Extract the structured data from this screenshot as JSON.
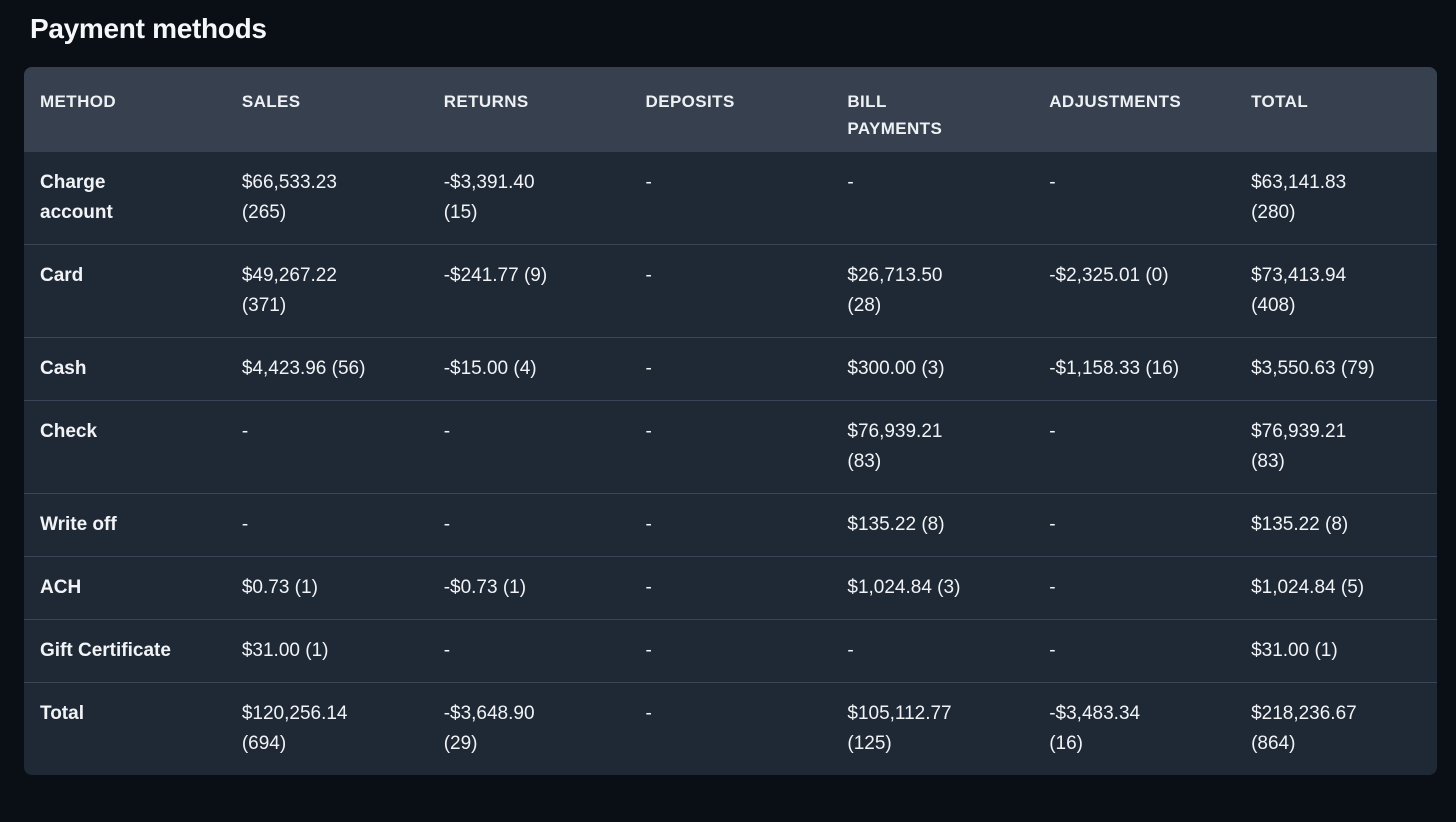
{
  "page": {
    "title": "Payment methods"
  },
  "colors": {
    "page_background": "#0a0e15",
    "table_header_background": "#36404f",
    "table_row_background": "#1f2935",
    "row_divider": "#3a4557",
    "text": "#f1f3f6"
  },
  "table": {
    "column_keys": [
      "method",
      "sales",
      "returns",
      "deposits",
      "bill_payments",
      "adjustments",
      "total"
    ],
    "columns": [
      "METHOD",
      "SALES",
      "RETURNS",
      "DEPOSITS",
      "BILL\nPAYMENTS",
      "ADJUSTMENTS",
      "TOTAL"
    ],
    "rows": [
      {
        "method": "Charge\naccount",
        "sales": "$66,533.23\n(265)",
        "returns": "-$3,391.40\n(15)",
        "deposits": "-",
        "bill_payments": "-",
        "adjustments": "-",
        "total": "$63,141.83\n(280)"
      },
      {
        "method": "Card",
        "sales": "$49,267.22\n(371)",
        "returns": "-$241.77 (9)",
        "deposits": "-",
        "bill_payments": "$26,713.50\n(28)",
        "adjustments": "-$2,325.01 (0)",
        "total": "$73,413.94\n(408)"
      },
      {
        "method": "Cash",
        "sales": "$4,423.96 (56)",
        "returns": "-$15.00 (4)",
        "deposits": "-",
        "bill_payments": "$300.00 (3)",
        "adjustments": "-$1,158.33 (16)",
        "total": "$3,550.63 (79)"
      },
      {
        "method": "Check",
        "sales": "-",
        "returns": "-",
        "deposits": "-",
        "bill_payments": "$76,939.21\n(83)",
        "adjustments": "-",
        "total": "$76,939.21\n(83)"
      },
      {
        "method": "Write off",
        "sales": "-",
        "returns": "-",
        "deposits": "-",
        "bill_payments": "$135.22 (8)",
        "adjustments": "-",
        "total": "$135.22 (8)"
      },
      {
        "method": "ACH",
        "sales": "$0.73 (1)",
        "returns": "-$0.73 (1)",
        "deposits": "-",
        "bill_payments": "$1,024.84 (3)",
        "adjustments": "-",
        "total": "$1,024.84 (5)"
      },
      {
        "method": "Gift Certificate",
        "sales": "$31.00 (1)",
        "returns": "-",
        "deposits": "-",
        "bill_payments": "-",
        "adjustments": "-",
        "total": "$31.00 (1)"
      },
      {
        "method": "Total",
        "sales": "$120,256.14\n(694)",
        "returns": "-$3,648.90\n(29)",
        "deposits": "-",
        "bill_payments": "$105,112.77\n(125)",
        "adjustments": "-$3,483.34\n(16)",
        "total": "$218,236.67\n(864)"
      }
    ]
  }
}
